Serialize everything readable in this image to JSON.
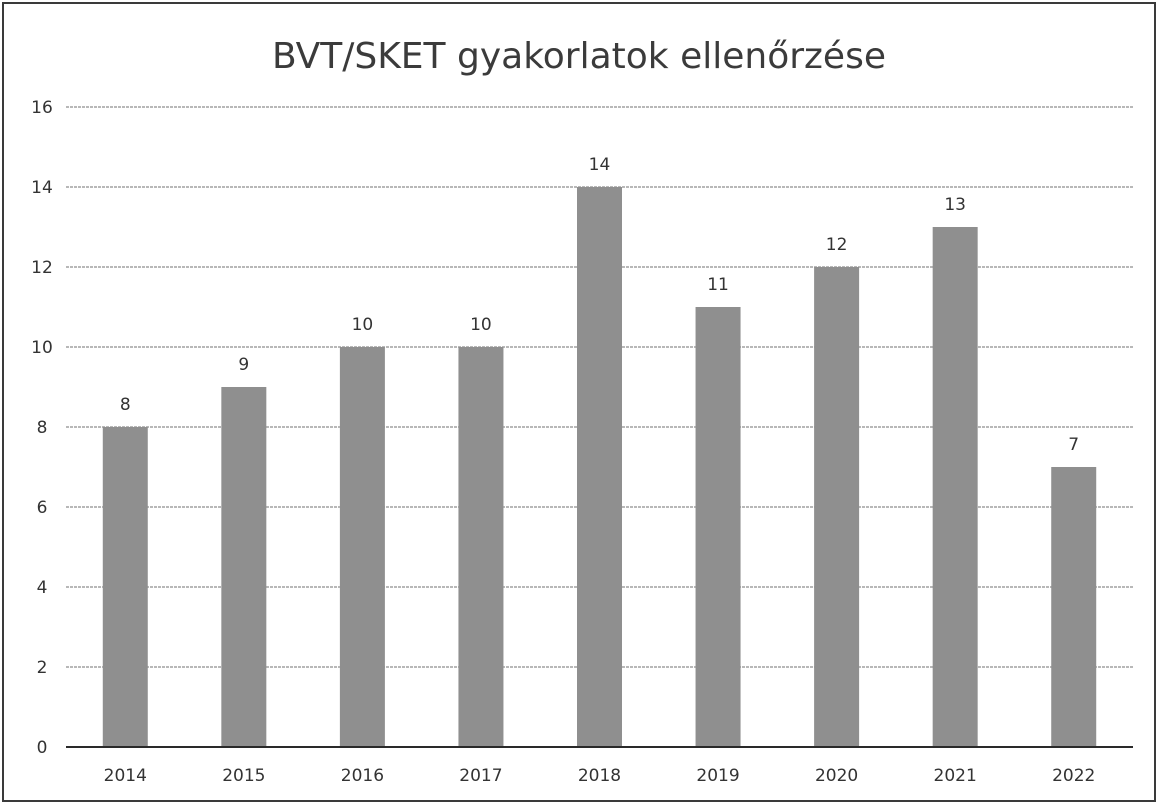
{
  "chart_data": {
    "type": "bar",
    "title": "BVT/SKET gyakorlatok ellenőrzése",
    "categories": [
      "2014",
      "2015",
      "2016",
      "2017",
      "2018",
      "2019",
      "2020",
      "2021",
      "2022"
    ],
    "values": [
      8,
      9,
      10,
      10,
      14,
      11,
      12,
      13,
      7
    ],
    "data_labels": [
      "8",
      "9",
      "10",
      "10",
      "14",
      "11",
      "12",
      "13",
      "7"
    ],
    "y_ticks": [
      "0",
      "2",
      "4",
      "6",
      "8",
      "10",
      "12",
      "14",
      "16"
    ],
    "ylim": [
      0,
      16
    ],
    "xlabel": "",
    "ylabel": "",
    "grid": true,
    "legend": "none",
    "bar_color": "#8f8f8f",
    "gridline_color": "#b8b8b8",
    "axis_color": "#2a2a2a"
  }
}
